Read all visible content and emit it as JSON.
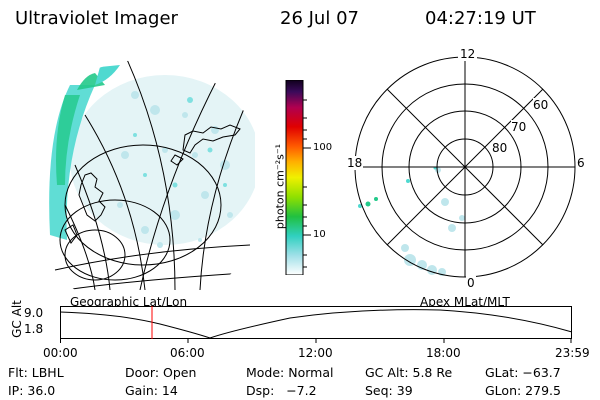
{
  "header": {
    "title": "Ultraviolet Imager",
    "date": "26 Jul 07",
    "time": "04:27:19 UT"
  },
  "colorbar": {
    "unit_label": "photon cm⁻²s⁻¹",
    "ticks": [
      "100",
      "10"
    ]
  },
  "polar_plot": {
    "mlt_labels": {
      "top": "12",
      "left": "18",
      "right": "6",
      "bottom": "0"
    },
    "lat_labels": [
      "60",
      "70",
      "80"
    ]
  },
  "maps": {
    "left_caption": "Geographic Lat/Lon",
    "right_caption": "Apex MLat/MLT"
  },
  "altitude_strip": {
    "axis_label": "GC Alt",
    "y_ticks": [
      "9.0",
      "1.8"
    ],
    "x_ticks": [
      "00:00",
      "06:00",
      "12:00",
      "18:00",
      "23:59"
    ]
  },
  "info": {
    "row1": {
      "filter": "Flt: LBHL",
      "door": "Door: Open",
      "mode": "Mode: Normal",
      "gc_alt": "GC Alt: 5.8 Re",
      "glat": "GLat: −63.7"
    },
    "row2": {
      "ip": "IP: 36.0",
      "gain": "Gain: 14",
      "dsp": "Dsp:   −7.2",
      "seq": "Seq: 39",
      "glon": "GLon: 279.5"
    }
  },
  "colors": {
    "emission_dim": "#bfe6ec",
    "emission_mid": "#4fd9d0",
    "emission_bright": "#22c98a",
    "marker": "#ff0000"
  }
}
